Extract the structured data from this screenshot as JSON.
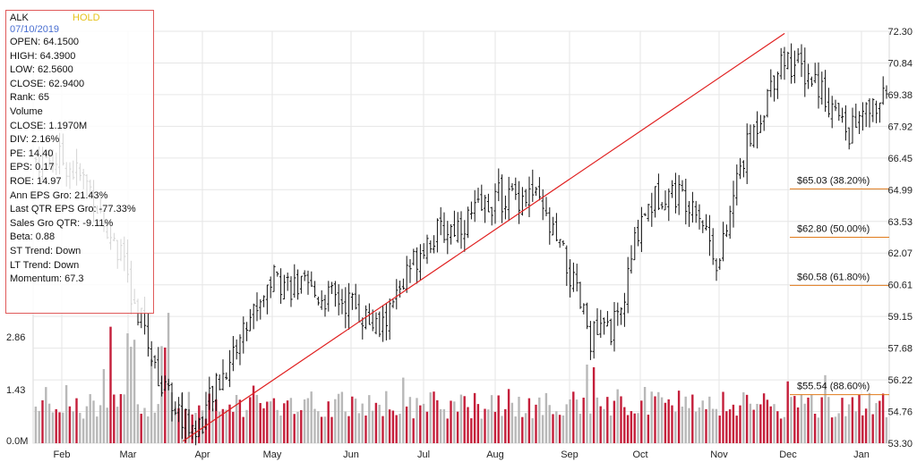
{
  "info_panel": {
    "symbol": "ALK",
    "rating": "HOLD",
    "date": "07/10/2019",
    "rows": [
      "OPEN: 64.1500",
      "HIGH: 64.3900",
      "LOW: 62.5600",
      "CLOSE: 62.9400",
      "Rank: 65",
      "Volume",
      "CLOSE: 1.1970M",
      "DIV: 2.16%",
      "PE: 14.40",
      "EPS: 0.17",
      "ROE: 14.97",
      "Ann EPS Gro: 21.43%",
      "Last QTR EPS Gro: -77.33%",
      "Sales Gro QTR: -9.11%",
      "Beta: 0.88",
      "ST Trend: Down",
      "LT Trend: Down",
      "Momentum: 67.3"
    ]
  },
  "colors": {
    "up_bar": "#c41e3a",
    "down_bar": "#b8b8b8",
    "trendline": "#e02020",
    "fib_line": "#e07a1a",
    "grid": "#e6e6e6",
    "frame": "#d9d9d9"
  },
  "chart_data": {
    "type": "ohlc",
    "x_axis": {
      "months": [
        "Feb",
        "Mar",
        "Apr",
        "May",
        "Jun",
        "Jul",
        "Aug",
        "Sep",
        "Oct",
        "Nov",
        "Dec",
        "Jan"
      ]
    },
    "price_axis": {
      "labels": [
        "72.30",
        "70.84",
        "69.38",
        "67.92",
        "66.45",
        "64.99",
        "63.53",
        "62.07",
        "60.61",
        "59.15",
        "57.68",
        "56.22",
        "54.76",
        "53.30"
      ],
      "min": 53.3,
      "max": 72.3
    },
    "volume_axis": {
      "labels": [
        "2.86",
        "1.43",
        "0.0M"
      ],
      "max": 5.0
    },
    "price_path": [
      [
        0,
        66.4
      ],
      [
        0.4,
        65.2
      ],
      [
        0.9,
        61.8
      ],
      [
        1.5,
        55.5
      ],
      [
        1.9,
        53.8
      ],
      [
        2.3,
        56.5
      ],
      [
        2.6,
        58.6
      ],
      [
        3.0,
        61.0
      ],
      [
        3.5,
        60.2
      ],
      [
        4.0,
        59.8
      ],
      [
        4.4,
        58.4
      ],
      [
        4.7,
        60.6
      ],
      [
        5.0,
        62.6
      ],
      [
        5.6,
        63.6
      ],
      [
        6.0,
        64.6
      ],
      [
        6.5,
        64.8
      ],
      [
        6.9,
        62.0
      ],
      [
        7.3,
        58.2
      ],
      [
        7.7,
        58.8
      ],
      [
        8.0,
        63.8
      ],
      [
        8.3,
        65.0
      ],
      [
        8.7,
        64.5
      ],
      [
        9.0,
        61.5
      ],
      [
        9.3,
        66.0
      ],
      [
        9.6,
        68.5
      ],
      [
        9.9,
        71.2
      ],
      [
        10.4,
        70.0
      ],
      [
        10.8,
        67.6
      ],
      [
        11.2,
        68.9
      ],
      [
        11.5,
        69.2
      ],
      [
        11.9,
        66.0
      ]
    ],
    "trendline": {
      "from": [
        1.74,
        53.4
      ],
      "to": [
        9.95,
        72.2
      ]
    },
    "fib_levels": [
      {
        "label": "$65.03 (38.20%)",
        "value": 65.03
      },
      {
        "label": "$62.80 (50.00%)",
        "value": 62.8
      },
      {
        "label": "$60.58 (61.80%)",
        "value": 60.58
      },
      {
        "label": "$55.54 (88.60%)",
        "value": 55.54
      }
    ]
  }
}
